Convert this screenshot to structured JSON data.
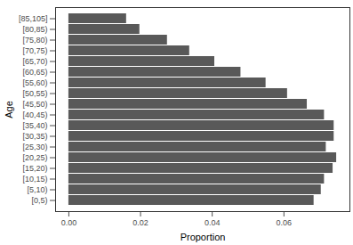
{
  "chart_data": {
    "type": "bar",
    "orientation": "horizontal",
    "x_label": "Proportion",
    "y_label": "Age",
    "categories": [
      "[0,5)",
      "[5,10)",
      "[10,15)",
      "[15,20)",
      "[20,25)",
      "[25,30)",
      "[30,35)",
      "[35,40)",
      "[40,45)",
      "[45,50)",
      "[50,55)",
      "[55,60)",
      "[60,65)",
      "[65,70)",
      "[70,75)",
      "[75,80)",
      "[80,85)",
      "[85,105]"
    ],
    "values": [
      0.0684,
      0.0704,
      0.0713,
      0.0737,
      0.0747,
      0.0718,
      0.074,
      0.074,
      0.0713,
      0.0665,
      0.061,
      0.055,
      0.048,
      0.0407,
      0.0337,
      0.0275,
      0.0198,
      0.0161
    ],
    "color": "#595959",
    "xlim": [
      -0.0037,
      0.0784
    ],
    "xticks": [
      {
        "value": 0,
        "label": "0.00"
      },
      {
        "value": 0.02,
        "label": "0.02"
      },
      {
        "value": 0.04,
        "label": "0.04"
      },
      {
        "value": 0.06,
        "label": "0.06"
      }
    ],
    "grid": false
  }
}
